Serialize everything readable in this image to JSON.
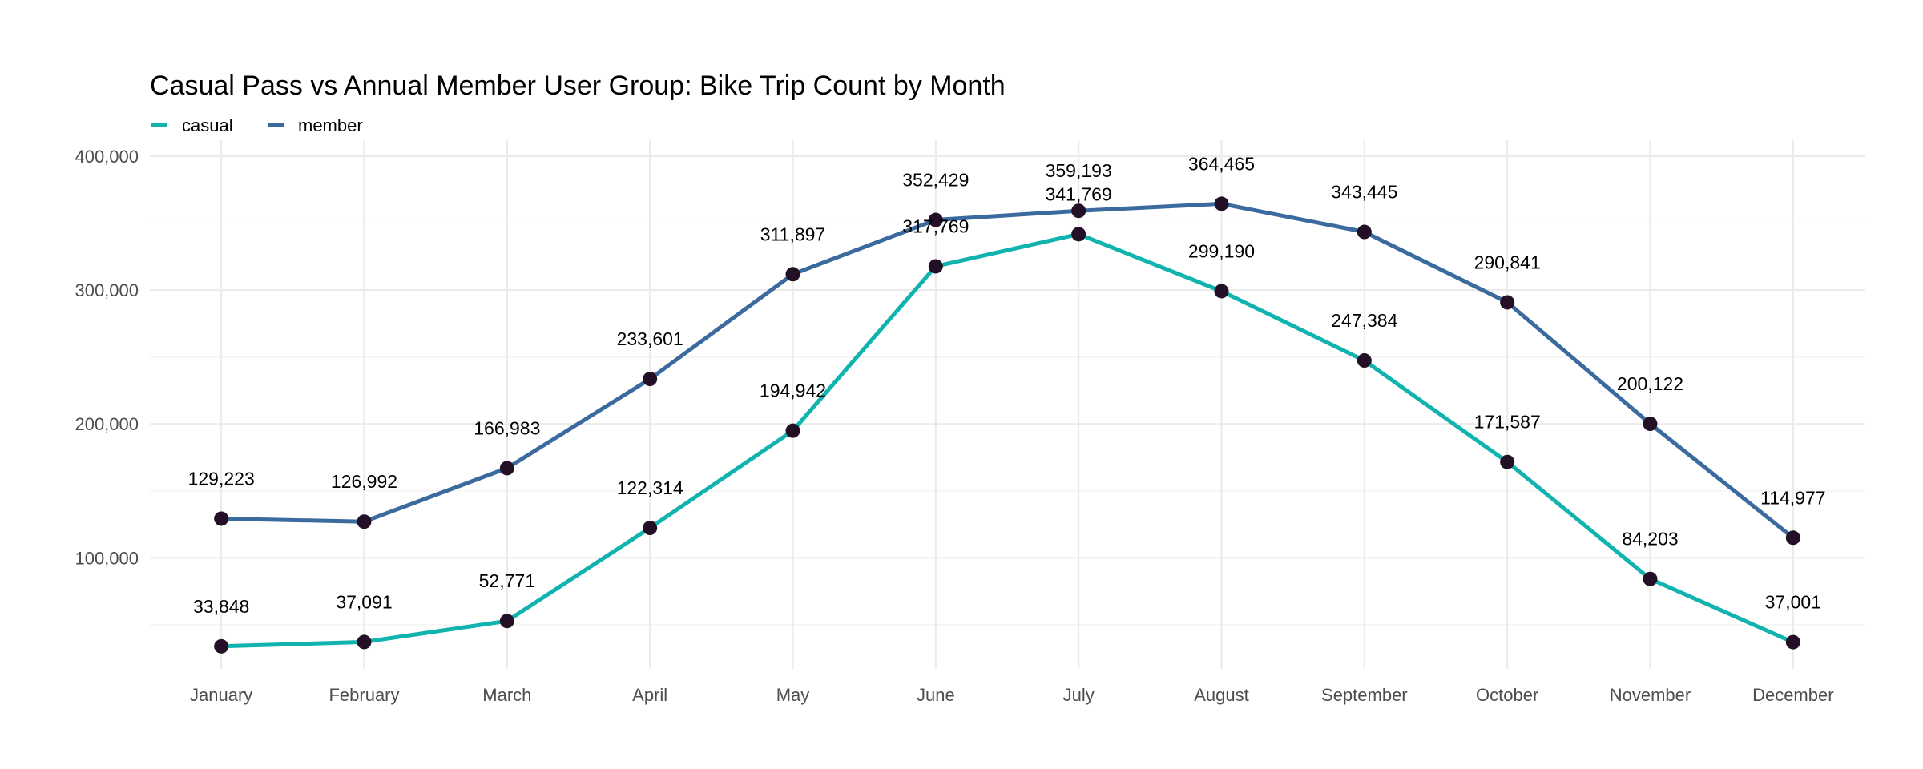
{
  "chart_data": {
    "type": "line",
    "title": "Casual Pass vs Annual Member User Group: Bike Trip Count by Month",
    "xlabel": "",
    "ylabel": "",
    "categories": [
      "January",
      "February",
      "March",
      "April",
      "May",
      "June",
      "July",
      "August",
      "September",
      "October",
      "November",
      "December"
    ],
    "ylim": [
      17000,
      412000
    ],
    "yticks": [
      100000,
      200000,
      300000,
      400000
    ],
    "ytick_labels": [
      "100,000",
      "200,000",
      "300,000",
      "400,000"
    ],
    "grid": true,
    "legend_position": "top-left",
    "point_color": "#230f26",
    "series": [
      {
        "name": "casual",
        "color": "#11b3ae",
        "values": [
          33848,
          37091,
          52771,
          122314,
          194942,
          317769,
          341769,
          299190,
          247384,
          171587,
          84203,
          37001
        ],
        "labels": [
          "33,848",
          "37,091",
          "52,771",
          "122,314",
          "194,942",
          "317,769",
          "341,769",
          "299,190",
          "247,384",
          "171,587",
          "84,203",
          "37,001"
        ]
      },
      {
        "name": "member",
        "color": "#3b6a9f",
        "values": [
          129223,
          126992,
          166983,
          233601,
          311897,
          352429,
          359193,
          364465,
          343445,
          290841,
          200122,
          114977
        ],
        "labels": [
          "129,223",
          "126,992",
          "166,983",
          "233,601",
          "311,897",
          "352,429",
          "359,193",
          "364,465",
          "343,445",
          "290,841",
          "200,122",
          "114,977"
        ]
      }
    ]
  }
}
